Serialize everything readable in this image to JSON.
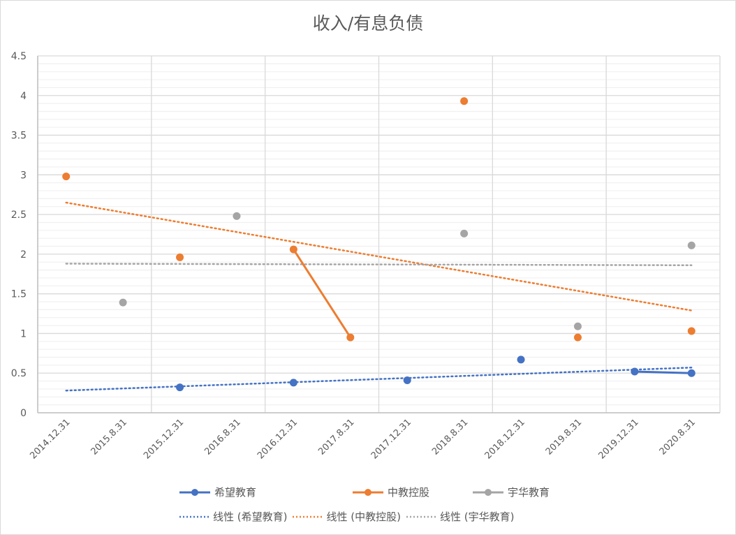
{
  "chart_data": {
    "type": "line",
    "title": "收入/有息负债",
    "xlabel": "",
    "ylabel": "",
    "ylim": [
      0,
      4.5
    ],
    "yticks": [
      0,
      0.5,
      1,
      1.5,
      2,
      2.5,
      3,
      3.5,
      4,
      4.5
    ],
    "ytick_labels": [
      "0",
      "0.5",
      "1",
      "1.5",
      "2",
      "2.5",
      "3",
      "3.5",
      "4",
      "4.5"
    ],
    "grid": true,
    "legend_position": "bottom",
    "categories": [
      "2014.12.31",
      "2015.8.31",
      "2015.12.31",
      "2016.8.31",
      "2016.12.31",
      "2017.8.31",
      "2017.12.31",
      "2018.8.31",
      "2018.12.31",
      "2019.8.31",
      "2019.12.31",
      "2020.8.31"
    ],
    "series": [
      {
        "name": "希望教育",
        "color": "#4472c4",
        "values": [
          null,
          null,
          0.32,
          null,
          0.38,
          null,
          0.41,
          null,
          0.67,
          null,
          0.52,
          0.5
        ]
      },
      {
        "name": "中教控股",
        "color": "#ed7d31",
        "values": [
          2.98,
          null,
          1.96,
          null,
          2.06,
          0.95,
          null,
          3.93,
          null,
          0.95,
          null,
          1.03
        ]
      },
      {
        "name": "宇华教育",
        "color": "#a5a5a5",
        "values": [
          null,
          1.39,
          null,
          2.48,
          null,
          null,
          null,
          2.26,
          null,
          1.09,
          null,
          2.11
        ]
      }
    ],
    "trendlines": [
      {
        "name": "线性 (希望教育)",
        "color": "#4472c4",
        "start": 0.28,
        "end": 0.57
      },
      {
        "name": "线性 (中教控股)",
        "color": "#ed7d31",
        "start": 2.65,
        "end": 1.29
      },
      {
        "name": "线性 (宇华教育)",
        "color": "#a5a5a5",
        "start": 1.88,
        "end": 1.86
      }
    ]
  },
  "legend": {
    "row1": [
      "希望教育",
      "中教控股",
      "宇华教育"
    ],
    "row2": [
      "线性 (希望教育)",
      "线性 (中教控股)",
      "线性 (宇华教育)"
    ]
  }
}
